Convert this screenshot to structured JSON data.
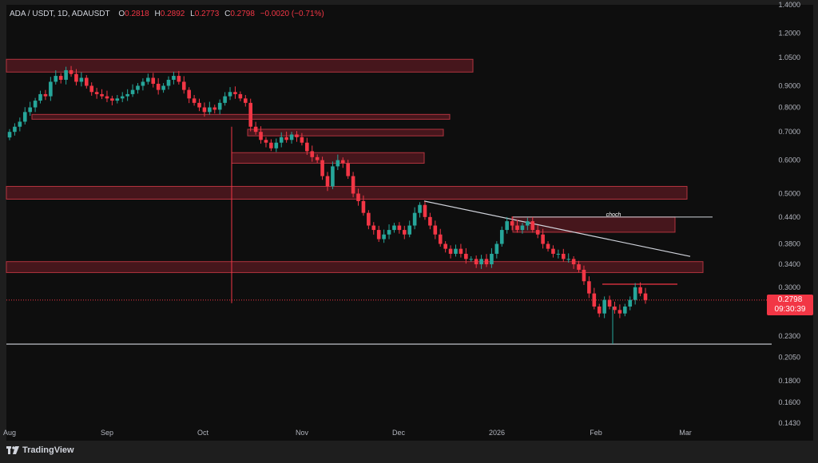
{
  "header": {
    "symbol": "ADA / USDT, 1D, ADAUSDT",
    "o_label": "O",
    "o_value": "0.2818",
    "h_label": "H",
    "h_value": "0.2892",
    "l_label": "L",
    "l_value": "0.2773",
    "c_label": "C",
    "c_value": "0.2798",
    "change": "−0.0020 (−0.71%)"
  },
  "price_badge": {
    "price": "0.2798",
    "countdown": "09:30:39"
  },
  "annotation": {
    "choch": "choch"
  },
  "watermark": {
    "text": "TradingView"
  },
  "colors": {
    "background": "#0e0e0e",
    "up": "#26a69a",
    "down": "#f23645",
    "zone_fill": "#5a1a22",
    "zone_stroke": "#b2343f",
    "axis_text": "#b2b5be"
  },
  "chart_data": {
    "type": "candlestick",
    "y_scale": "log",
    "y_ticks": [
      "1.4000",
      "1.2000",
      "1.0500",
      "0.9000",
      "0.8000",
      "0.7000",
      "0.6000",
      "0.5000",
      "0.4400",
      "0.3800",
      "0.3400",
      "0.3000",
      "0.2300",
      "0.2050",
      "0.1800",
      "0.1600",
      "0.1430"
    ],
    "x_ticks": [
      "Aug",
      "Sep",
      "Oct",
      "Nov",
      "Dec",
      "2026",
      "Feb",
      "Mar"
    ],
    "last_price": 0.2798,
    "trendline_from": {
      "date": "Dec 8",
      "price": 0.48
    },
    "trendline_to": {
      "date": "Feb 28",
      "price": 0.355
    },
    "choch_level": 0.44,
    "support_level": 0.22,
    "resistance_line": 0.305,
    "supply_zones": [
      {
        "top": 1.04,
        "bottom": 0.97
      },
      {
        "top": 0.77,
        "bottom": 0.75
      },
      {
        "top": 0.71,
        "bottom": 0.685
      },
      {
        "top": 0.625,
        "bottom": 0.59
      },
      {
        "top": 0.52,
        "bottom": 0.485
      },
      {
        "top": 0.44,
        "bottom": 0.405
      },
      {
        "top": 0.345,
        "bottom": 0.325
      }
    ],
    "closes": [
      0.7,
      0.72,
      0.74,
      0.78,
      0.8,
      0.83,
      0.86,
      0.85,
      0.92,
      0.95,
      0.93,
      0.98,
      0.96,
      0.92,
      0.94,
      0.9,
      0.87,
      0.86,
      0.85,
      0.84,
      0.83,
      0.84,
      0.85,
      0.86,
      0.88,
      0.9,
      0.92,
      0.94,
      0.91,
      0.88,
      0.9,
      0.93,
      0.95,
      0.92,
      0.88,
      0.84,
      0.82,
      0.8,
      0.78,
      0.8,
      0.79,
      0.82,
      0.85,
      0.87,
      0.86,
      0.84,
      0.82,
      0.72,
      0.7,
      0.67,
      0.66,
      0.64,
      0.66,
      0.68,
      0.67,
      0.69,
      0.68,
      0.66,
      0.63,
      0.61,
      0.6,
      0.55,
      0.52,
      0.58,
      0.6,
      0.59,
      0.55,
      0.5,
      0.48,
      0.45,
      0.42,
      0.41,
      0.39,
      0.4,
      0.41,
      0.42,
      0.41,
      0.4,
      0.42,
      0.45,
      0.47,
      0.44,
      0.42,
      0.4,
      0.38,
      0.37,
      0.36,
      0.37,
      0.36,
      0.35,
      0.35,
      0.34,
      0.35,
      0.34,
      0.36,
      0.38,
      0.41,
      0.43,
      0.42,
      0.41,
      0.42,
      0.43,
      0.41,
      0.4,
      0.38,
      0.37,
      0.36,
      0.36,
      0.35,
      0.35,
      0.34,
      0.33,
      0.31,
      0.29,
      0.27,
      0.26,
      0.28,
      0.27,
      0.265,
      0.26,
      0.27,
      0.28,
      0.3,
      0.29,
      0.2798
    ]
  }
}
